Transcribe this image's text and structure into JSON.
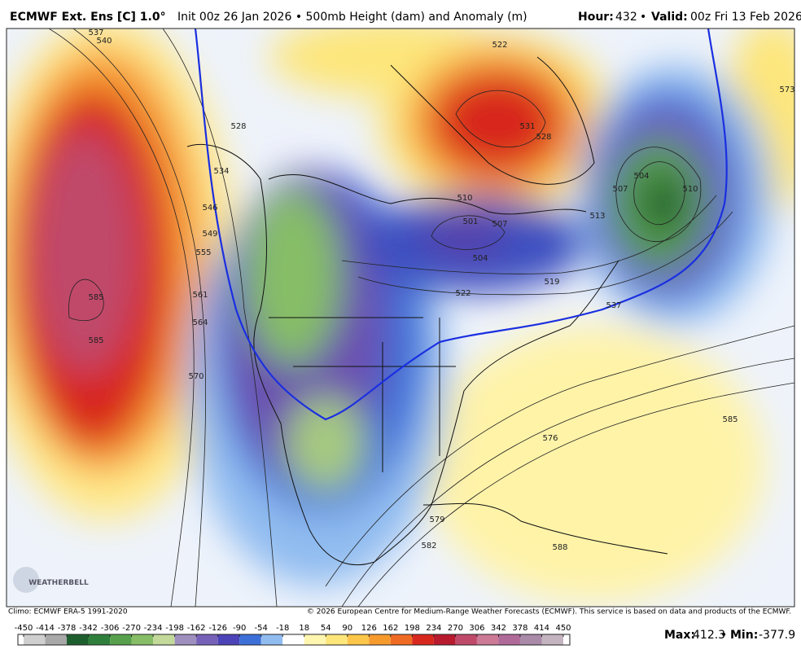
{
  "header": {
    "model": "ECMWF Ext. Ens [C] 1.0°",
    "description": "Init 00z 26 Jan 2026 • 500mb Height (dam) and Anomaly (m)",
    "hour_label": "Hour:",
    "hour": "432",
    "separator": "•",
    "valid_label": "Valid:",
    "valid": "00z Fri 13 Feb 2026"
  },
  "contour_labels": [
    "537",
    "540",
    "528",
    "534",
    "546",
    "549",
    "555",
    "561",
    "564",
    "570",
    "585",
    "585",
    "573",
    "522",
    "531",
    "528",
    "504",
    "501",
    "510",
    "507",
    "513",
    "507",
    "504",
    "522",
    "519",
    "537",
    "585",
    "576",
    "579",
    "582",
    "588",
    "510"
  ],
  "logo": "WEATHERBELL",
  "footer": {
    "climo": "Climo: ECMWF ERA-5 1991-2020",
    "copyright": "© 2026 European Centre for Medium-Range Weather Forecasts (ECMWF). This service is based on data and products of the ECMWF.",
    "max_label": "Max:",
    "max": "412.3",
    "min_label": "Min:",
    "min": "-377.9"
  },
  "colorbar": {
    "ticks": [
      -450,
      -414,
      -378,
      -342,
      -306,
      -270,
      -234,
      -198,
      -162,
      -126,
      -90,
      -54,
      -18,
      18,
      54,
      90,
      126,
      162,
      198,
      234,
      270,
      306,
      342,
      378,
      414,
      450
    ],
    "colors": [
      "#cfcfcf",
      "#a8a8a8",
      "#1d5e2f",
      "#2f7f3c",
      "#56a04c",
      "#86bd66",
      "#c2d99a",
      "#9e8fbf",
      "#7661b8",
      "#4c43b8",
      "#3c6fd8",
      "#90bcf0",
      "#ffffff",
      "#fff6b0",
      "#fde67a",
      "#fbc64a",
      "#f79a2e",
      "#ef6a22",
      "#d8281e",
      "#b81a2e",
      "#c04a6a",
      "#cc7a96",
      "#b06a9a",
      "#a98aa8",
      "#c4b4c0"
    ]
  }
}
